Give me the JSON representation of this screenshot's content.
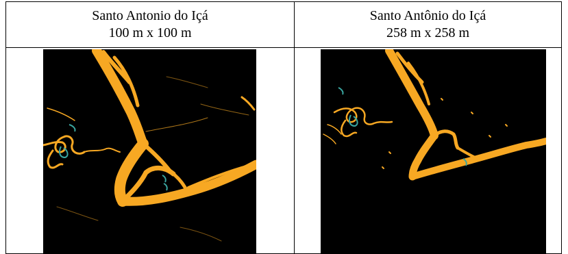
{
  "table": {
    "left": {
      "title": "Santo Antonio do Içá",
      "resolution": "100 m x 100 m"
    },
    "right": {
      "title": "Santo Antônio do Içá",
      "resolution": "258 m x 258 m"
    }
  },
  "colors": {
    "background": "#000000",
    "river": "#f7a823",
    "lake": "#3aa6a0",
    "border": "#000000"
  }
}
